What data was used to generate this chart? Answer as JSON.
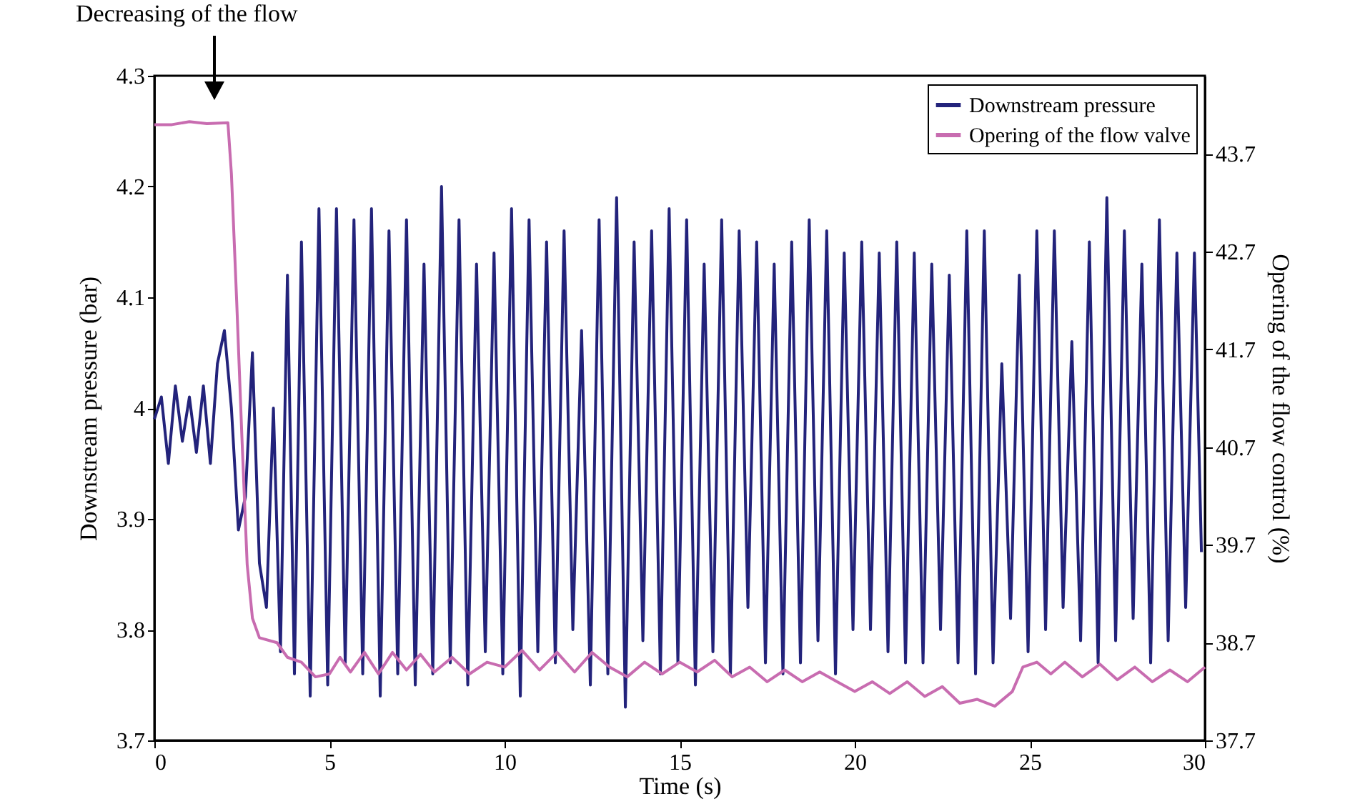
{
  "chart_data": {
    "type": "line",
    "xlabel": "Time (s)",
    "ylabel": "Downstream pressure (bar)",
    "y2label": "Opering of the flow control (%)",
    "annotations": [
      "Decreasing of the flow"
    ],
    "xlim": [
      0,
      30
    ],
    "xticks": [
      0,
      5,
      10,
      15,
      20,
      25,
      30
    ],
    "ylim": [
      3.7,
      4.3
    ],
    "yticks": [
      3.7,
      3.8,
      3.9,
      4,
      4.1,
      4.2,
      4.3
    ],
    "y2lim": [
      37.7,
      44.5
    ],
    "y2ticks": [
      37.7,
      38.7,
      39.7,
      40.7,
      41.7,
      42.7,
      43.7
    ],
    "legend": "top right",
    "grid": false,
    "line_style": "solid",
    "series": [
      {
        "name": "Downstream pressure",
        "color": "#23237b",
        "x": [
          0,
          0.2,
          0.4,
          0.6,
          0.8,
          1.0,
          1.2,
          1.4,
          1.6,
          1.8,
          2.0,
          2.2,
          2.4,
          2.6,
          2.8,
          3.0,
          3.2,
          3.4,
          3.6,
          3.8,
          4.0,
          4.2,
          4.45,
          4.7,
          4.95,
          5.2,
          5.45,
          5.7,
          5.95,
          6.2,
          6.45,
          6.7,
          6.95,
          7.2,
          7.45,
          7.7,
          7.95,
          8.2,
          8.45,
          8.7,
          8.95,
          9.2,
          9.45,
          9.7,
          9.95,
          10.2,
          10.45,
          10.7,
          10.95,
          11.2,
          11.45,
          11.7,
          11.95,
          12.2,
          12.45,
          12.7,
          12.95,
          13.2,
          13.45,
          13.7,
          13.95,
          14.2,
          14.45,
          14.7,
          14.95,
          15.2,
          15.45,
          15.7,
          15.95,
          16.2,
          16.45,
          16.7,
          16.95,
          17.2,
          17.45,
          17.7,
          17.95,
          18.2,
          18.45,
          18.7,
          18.95,
          19.2,
          19.45,
          19.7,
          19.95,
          20.2,
          20.45,
          20.7,
          20.95,
          21.2,
          21.45,
          21.7,
          21.95,
          22.2,
          22.45,
          22.7,
          22.95,
          23.2,
          23.45,
          23.7,
          23.95,
          24.2,
          24.45,
          24.7,
          24.95,
          25.2,
          25.45,
          25.7,
          25.95,
          26.2,
          26.45,
          26.7,
          26.95,
          27.2,
          27.45,
          27.7,
          27.95,
          28.2,
          28.45,
          28.7,
          28.95,
          29.2,
          29.45,
          29.7,
          29.9
        ],
        "values": [
          3.99,
          4.01,
          3.95,
          4.02,
          3.97,
          4.01,
          3.96,
          4.02,
          3.95,
          4.04,
          4.07,
          4.0,
          3.89,
          3.92,
          4.05,
          3.86,
          3.82,
          4.0,
          3.78,
          4.12,
          3.76,
          4.15,
          3.74,
          4.18,
          3.75,
          4.18,
          3.77,
          4.17,
          3.76,
          4.18,
          3.74,
          4.16,
          3.76,
          4.17,
          3.75,
          4.13,
          3.76,
          4.2,
          3.77,
          4.17,
          3.75,
          4.13,
          3.78,
          4.14,
          3.76,
          4.18,
          3.74,
          4.17,
          3.78,
          4.15,
          3.77,
          4.16,
          3.8,
          4.07,
          3.75,
          4.17,
          3.76,
          4.19,
          3.73,
          4.15,
          3.79,
          4.16,
          3.76,
          4.18,
          3.77,
          4.17,
          3.75,
          4.13,
          3.78,
          4.17,
          3.76,
          4.16,
          3.82,
          4.15,
          3.77,
          4.13,
          3.76,
          4.15,
          3.77,
          4.17,
          3.79,
          4.16,
          3.76,
          4.14,
          3.8,
          4.15,
          3.8,
          4.14,
          3.78,
          4.15,
          3.77,
          4.14,
          3.77,
          4.13,
          3.8,
          4.12,
          3.77,
          4.16,
          3.76,
          4.16,
          3.77,
          4.04,
          3.81,
          4.12,
          3.78,
          4.16,
          3.8,
          4.16,
          3.82,
          4.06,
          3.79,
          4.15,
          3.77,
          4.19,
          3.79,
          4.16,
          3.81,
          4.13,
          3.77,
          4.17,
          3.79,
          4.14,
          3.82,
          4.14,
          3.87
        ]
      },
      {
        "name": "Opering of the flow valve",
        "color": "#c86cb0",
        "axis": "y2",
        "x": [
          0,
          0.5,
          1.0,
          1.5,
          2.1,
          2.2,
          2.35,
          2.5,
          2.65,
          2.8,
          3.0,
          3.5,
          3.8,
          4.2,
          4.6,
          5.0,
          5.3,
          5.6,
          6.0,
          6.4,
          6.8,
          7.2,
          7.6,
          8.0,
          8.5,
          9.0,
          9.5,
          10.0,
          10.5,
          11.0,
          11.5,
          12.0,
          12.5,
          13.0,
          13.5,
          14.0,
          14.5,
          15.0,
          15.5,
          16.0,
          16.5,
          17.0,
          17.5,
          18.0,
          18.5,
          19.0,
          19.5,
          20.0,
          20.5,
          21.0,
          21.5,
          22.0,
          22.5,
          23.0,
          23.5,
          24.0,
          24.5,
          24.8,
          25.2,
          25.6,
          26.0,
          26.5,
          27.0,
          27.5,
          28.0,
          28.5,
          29.0,
          29.5,
          30.0
        ],
        "values": [
          44.0,
          44.0,
          44.03,
          44.01,
          44.02,
          43.5,
          42.2,
          40.8,
          39.5,
          38.95,
          38.75,
          38.7,
          38.55,
          38.5,
          38.35,
          38.38,
          38.55,
          38.4,
          38.6,
          38.38,
          38.6,
          38.42,
          38.58,
          38.4,
          38.55,
          38.38,
          38.5,
          38.45,
          38.62,
          38.42,
          38.6,
          38.4,
          38.6,
          38.45,
          38.35,
          38.5,
          38.38,
          38.5,
          38.4,
          38.52,
          38.35,
          38.45,
          38.3,
          38.42,
          38.3,
          38.4,
          38.3,
          38.2,
          38.3,
          38.18,
          38.3,
          38.15,
          38.25,
          38.08,
          38.12,
          38.05,
          38.2,
          38.45,
          38.5,
          38.38,
          38.5,
          38.35,
          38.48,
          38.32,
          38.45,
          38.3,
          38.42,
          38.3,
          38.45
        ]
      }
    ]
  }
}
